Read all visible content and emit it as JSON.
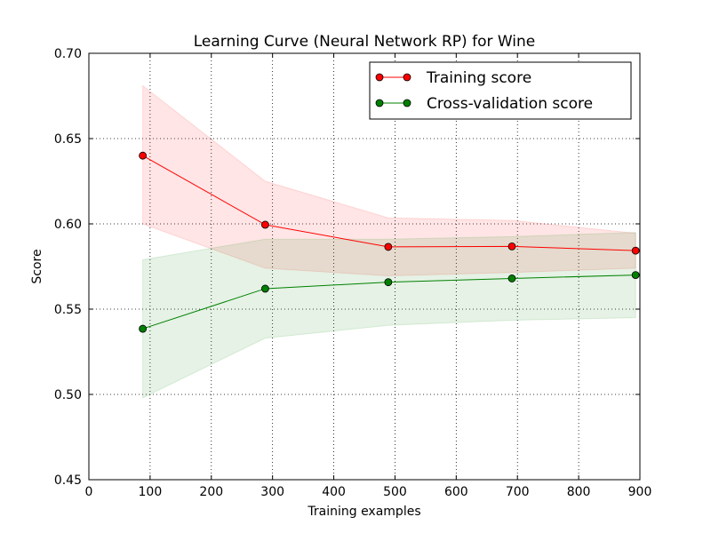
{
  "chart_data": {
    "type": "line",
    "title": "Learning Curve (Neural Network RP) for Wine",
    "xlabel": "Training examples",
    "ylabel": "Score",
    "xlim": [
      0,
      900
    ],
    "ylim": [
      0.45,
      0.7
    ],
    "xticks": [
      0,
      100,
      200,
      300,
      400,
      500,
      600,
      700,
      800,
      900
    ],
    "xtick_labels": [
      "0",
      "100",
      "200",
      "300",
      "400",
      "500",
      "600",
      "700",
      "800",
      "900"
    ],
    "yticks": [
      0.45,
      0.5,
      0.55,
      0.6,
      0.65,
      0.7
    ],
    "ytick_labels": [
      "0.45",
      "0.50",
      "0.55",
      "0.60",
      "0.65",
      "0.70"
    ],
    "grid": true,
    "legend_position": "top-right",
    "x": [
      88,
      288,
      489,
      691,
      893
    ],
    "series": [
      {
        "name": "Training score",
        "color": "#ff0000",
        "fill_color": "#ff0000",
        "values": [
          0.64,
          0.5995,
          0.5865,
          0.5868,
          0.5843
        ],
        "upper": [
          0.681,
          0.625,
          0.6035,
          0.602,
          0.5945
        ],
        "lower": [
          0.6,
          0.574,
          0.5695,
          0.5715,
          0.574
        ]
      },
      {
        "name": "Cross-validation score",
        "color": "#008000",
        "fill_color": "#008000",
        "values": [
          0.5385,
          0.562,
          0.5658,
          0.568,
          0.57
        ],
        "upper": [
          0.579,
          0.591,
          0.591,
          0.5925,
          0.595
        ],
        "lower": [
          0.498,
          0.533,
          0.5405,
          0.5435,
          0.545
        ]
      }
    ]
  }
}
